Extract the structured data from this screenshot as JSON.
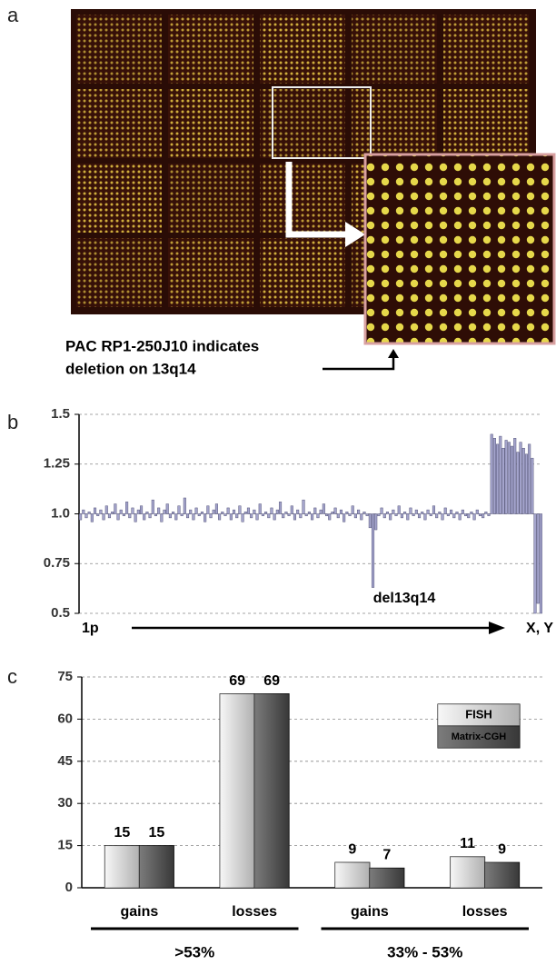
{
  "panel_labels": [
    "a",
    "b",
    "c"
  ],
  "panel_a": {
    "annotation_lines": [
      "PAC RP1-250J10 indicates",
      "deletion on 13q14"
    ]
  },
  "chart_data": [
    {
      "type": "bar",
      "baseline": 1,
      "x_start_label": "1p",
      "x_end_label": "X, Y",
      "annotation": "del13q14",
      "color": "#a4a4cc",
      "grid": true,
      "ylim": [
        0.5,
        1.5
      ],
      "yticks": [
        0.5,
        0.75,
        {
          "value": 1,
          "label": "1.0"
        },
        1.25,
        1.5
      ],
      "values": [
        0.97,
        1.02,
        0.98,
        1.01,
        0.96,
        1.03,
        0.99,
        1.02,
        0.97,
        1.04,
        0.98,
        1.01,
        1.05,
        0.97,
        1.02,
        0.99,
        1.06,
        0.98,
        1.03,
        0.96,
        1.02,
        1.04,
        0.97,
        1.01,
        0.98,
        1.07,
        0.99,
        1.03,
        0.96,
        1.02,
        1.05,
        0.98,
        1.01,
        0.97,
        1.04,
        0.99,
        1.08,
        0.98,
        1.02,
        0.97,
        1.03,
        0.99,
        1.01,
        0.96,
        1.04,
        0.98,
        1.02,
        1.05,
        0.97,
        1.01,
        0.99,
        1.03,
        0.97,
        1.02,
        0.98,
        1.04,
        0.96,
        1.01,
        1.03,
        0.98,
        1.02,
        0.97,
        1.05,
        0.99,
        1.01,
        0.98,
        1.03,
        0.97,
        1.02,
        1.06,
        0.98,
        1.01,
        0.99,
        1.04,
        0.97,
        1.02,
        0.98,
        1.07,
        0.99,
        1.01,
        0.97,
        1.03,
        0.98,
        1.02,
        1.05,
        0.99,
        0.97,
        1.01,
        1.03,
        0.98,
        1.02,
        0.96,
        1.01,
        0.99,
        1.04,
        0.98,
        1.02,
        0.97,
        1.01,
        0.99,
        0.93,
        0.63,
        0.92,
        0.99,
        1.03,
        0.98,
        1.01,
        0.97,
        1.02,
        0.99,
        1.04,
        0.98,
        1.01,
        0.97,
        1.03,
        0.99,
        1.02,
        0.98,
        1.01,
        0.97,
        1.02,
        0.99,
        1.04,
        0.98,
        1.01,
        0.97,
        1.03,
        0.99,
        1.02,
        0.98,
        1.01,
        0.97,
        1.02,
        0.99,
        0.98,
        1.01,
        0.97,
        1.02,
        0.99,
        0.98,
        1.01,
        0.99,
        1.4,
        1.38,
        1.35,
        1.39,
        1.33,
        1.37,
        1.36,
        1.34,
        1.38,
        1.31,
        1.36,
        1.33,
        1.3,
        1.35,
        1.28,
        0.5,
        0.55,
        0.5
      ]
    },
    {
      "type": "bar",
      "categories": [
        "gains",
        "losses",
        "gains",
        "losses"
      ],
      "group_labels": [
        ">53%",
        "33% - 53%"
      ],
      "grid": true,
      "legend": "upper right",
      "ylim": [
        0,
        75
      ],
      "yticks": [
        0,
        15,
        30,
        45,
        60,
        75
      ],
      "series": [
        {
          "name": "FISH",
          "color": "#e4e4e4",
          "values": [
            15,
            69,
            9,
            11
          ]
        },
        {
          "name": "Matrix-CGH",
          "color": "#5a5a5a",
          "values": [
            15,
            69,
            7,
            9
          ]
        }
      ]
    }
  ]
}
